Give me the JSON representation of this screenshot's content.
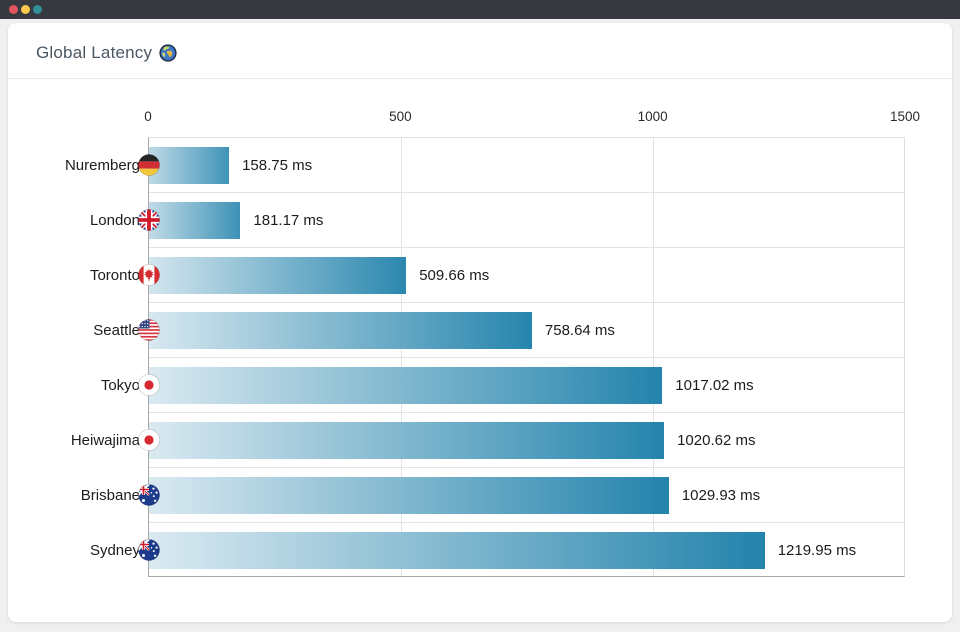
{
  "window": {
    "titlebar_buttons": [
      {
        "name": "close",
        "color": "#e1555f"
      },
      {
        "name": "minimize",
        "color": "#f7c84b"
      },
      {
        "name": "zoom",
        "color": "#318f97"
      }
    ]
  },
  "header": {
    "title": "Global Latency",
    "icon": "globe-europe-africa-icon"
  },
  "chart_data": {
    "type": "bar",
    "orientation": "horizontal",
    "title": "Global Latency",
    "unit": "ms",
    "xlim": [
      0,
      1500
    ],
    "x_ticks": [
      "0",
      "500",
      "1000",
      "1500"
    ],
    "x_tick_values": [
      0,
      500,
      1000,
      1500
    ],
    "grid": true,
    "categories": [
      "Nuremberg",
      "London",
      "Toronto",
      "Seattle",
      "Tokyo",
      "Heiwajima",
      "Brisbane",
      "Sydney"
    ],
    "values": [
      158.75,
      181.17,
      509.66,
      758.64,
      1017.02,
      1020.62,
      1029.93,
      1219.95
    ],
    "value_labels": [
      "158.75 ms",
      "181.17 ms",
      "509.66 ms",
      "758.64 ms",
      "1017.02 ms",
      "1020.62 ms",
      "1029.93 ms",
      "1219.95 ms"
    ],
    "flags": [
      "germany",
      "united-kingdom",
      "canada",
      "united-states",
      "japan",
      "japan",
      "australia",
      "australia"
    ],
    "colors": {
      "bar_gradient_start": "#e2eef4",
      "bar_gradient_end": "#1c7fa9",
      "axis_line": "#a9a9a9",
      "gridline": "#e3e3e3"
    }
  }
}
